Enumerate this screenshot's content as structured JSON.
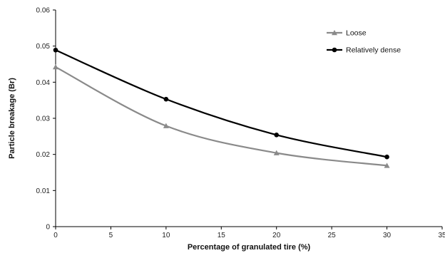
{
  "chart_data": {
    "type": "line",
    "title": "",
    "xlabel": "Percentage of granulated tire (%)",
    "ylabel": "Particle breakage (Br)",
    "xlim": [
      0,
      35
    ],
    "ylim": [
      0,
      0.06
    ],
    "x_ticks": [
      0,
      5,
      10,
      15,
      20,
      25,
      30,
      35
    ],
    "x_tick_labels": [
      "0",
      "5",
      "10",
      "15",
      "20",
      "25",
      "30",
      "35"
    ],
    "y_ticks": [
      0,
      0.01,
      0.02,
      0.03,
      0.04,
      0.05,
      0.06
    ],
    "y_tick_labels": [
      "0",
      "0.01",
      "0.02",
      "0.03",
      "0.04",
      "0.05",
      "0.06"
    ],
    "grid": false,
    "legend_position": "top-right",
    "series": [
      {
        "name": "Loose",
        "color": "#8a8a8a",
        "marker": "triangle",
        "x": [
          0,
          10,
          20,
          30
        ],
        "y": [
          0.0442,
          0.0279,
          0.0204,
          0.0169
        ]
      },
      {
        "name": "Relatively dense",
        "color": "#000000",
        "marker": "circle",
        "x": [
          0,
          10,
          20,
          30
        ],
        "y": [
          0.0489,
          0.0353,
          0.0254,
          0.0193
        ]
      }
    ]
  }
}
